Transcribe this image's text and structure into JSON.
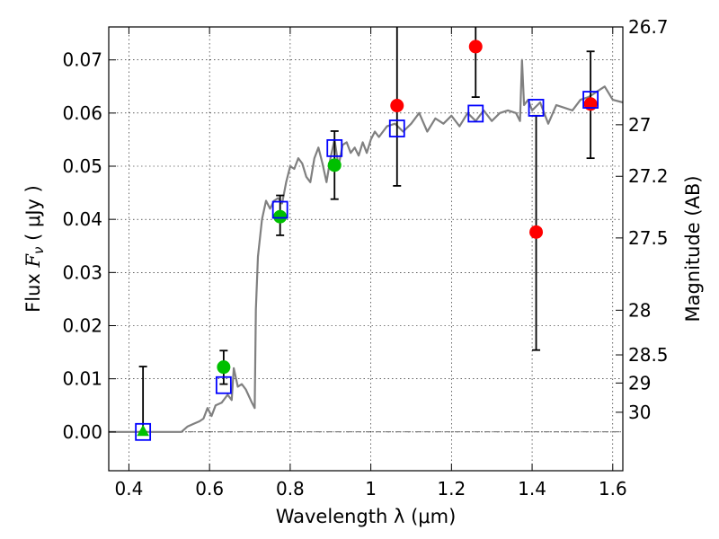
{
  "chart_data": {
    "type": "scatter",
    "xlabel": "Wavelength  λ (μm)",
    "ylabel_prefix": "Flux  ",
    "ylabel_symbol": "F",
    "ylabel_sub": "ν",
    "ylabel_suffix": "  ( μJy )",
    "y2label": "Magnitude (AB)",
    "xlim": [
      0.35,
      1.625
    ],
    "ylim": [
      -0.0073,
      0.0762
    ],
    "xticks": [
      0.4,
      0.6,
      0.8,
      1.0,
      1.2,
      1.4,
      1.6
    ],
    "xtick_labels": [
      "0.4",
      "0.6",
      "0.8",
      "1",
      "1.2",
      "1.4",
      "1.6"
    ],
    "yticks": [
      0.0,
      0.01,
      0.02,
      0.03,
      0.04,
      0.05,
      0.06,
      0.07
    ],
    "ytick_labels": [
      "0.00",
      "0.01",
      "0.02",
      "0.03",
      "0.04",
      "0.05",
      "0.06",
      "0.07"
    ],
    "y2ticks": [
      {
        "label": "26.7",
        "flux": 0.0762
      },
      {
        "label": "27",
        "flux": 0.0578
      },
      {
        "label": "27.2",
        "flux": 0.0481
      },
      {
        "label": "27.5",
        "flux": 0.0365
      },
      {
        "label": "28",
        "flux": 0.0229
      },
      {
        "label": "28.5",
        "flux": 0.0145
      },
      {
        "label": "29",
        "flux": 0.0092
      },
      {
        "label": "30",
        "flux": 0.0037
      }
    ],
    "grid": true,
    "colors": {
      "model": "#808080",
      "green": "#00c000",
      "red": "#ff0000",
      "square": "#0000ff",
      "error": "#000000"
    },
    "model_spectrum": {
      "x": [
        0.35,
        0.53,
        0.545,
        0.56,
        0.575,
        0.585,
        0.595,
        0.605,
        0.615,
        0.63,
        0.645,
        0.655,
        0.66,
        0.67,
        0.68,
        0.69,
        0.705,
        0.712,
        0.715,
        0.72,
        0.73,
        0.74,
        0.75,
        0.76,
        0.77,
        0.78,
        0.79,
        0.8,
        0.81,
        0.82,
        0.83,
        0.84,
        0.85,
        0.86,
        0.87,
        0.88,
        0.89,
        0.9,
        0.91,
        0.92,
        0.93,
        0.94,
        0.95,
        0.96,
        0.97,
        0.98,
        0.99,
        1.0,
        1.01,
        1.02,
        1.04,
        1.06,
        1.08,
        1.1,
        1.12,
        1.14,
        1.16,
        1.18,
        1.2,
        1.22,
        1.24,
        1.26,
        1.28,
        1.3,
        1.32,
        1.34,
        1.36,
        1.37,
        1.375,
        1.38,
        1.39,
        1.4,
        1.42,
        1.44,
        1.46,
        1.48,
        1.5,
        1.52,
        1.54,
        1.56,
        1.58,
        1.6,
        1.625
      ],
      "y": [
        0.0,
        0.0,
        0.001,
        0.0015,
        0.002,
        0.0025,
        0.0045,
        0.003,
        0.005,
        0.0055,
        0.007,
        0.006,
        0.012,
        0.0085,
        0.009,
        0.008,
        0.0055,
        0.0045,
        0.023,
        0.033,
        0.04,
        0.0435,
        0.042,
        0.0435,
        0.044,
        0.043,
        0.047,
        0.05,
        0.0495,
        0.0515,
        0.0505,
        0.048,
        0.047,
        0.0515,
        0.0535,
        0.0505,
        0.047,
        0.0515,
        0.055,
        0.05,
        0.054,
        0.0545,
        0.0525,
        0.0535,
        0.052,
        0.0545,
        0.0525,
        0.055,
        0.0565,
        0.0555,
        0.0575,
        0.058,
        0.0565,
        0.058,
        0.06,
        0.0565,
        0.059,
        0.058,
        0.0595,
        0.0575,
        0.06,
        0.0585,
        0.0605,
        0.0585,
        0.06,
        0.0605,
        0.06,
        0.0585,
        0.07,
        0.0615,
        0.0625,
        0.0605,
        0.062,
        0.058,
        0.0615,
        0.061,
        0.0605,
        0.0625,
        0.063,
        0.064,
        0.065,
        0.0625,
        0.062
      ]
    },
    "error_bars": [
      {
        "x": 0.435,
        "lo": 0.0,
        "hi": 0.0123
      },
      {
        "x": 0.635,
        "lo": 0.009,
        "hi": 0.0153
      },
      {
        "x": 0.775,
        "lo": 0.037,
        "hi": 0.0445
      },
      {
        "x": 0.91,
        "lo": 0.0438,
        "hi": 0.0566
      },
      {
        "x": 1.065,
        "lo": 0.0463,
        "hi": 0.0762
      },
      {
        "x": 1.26,
        "lo": 0.063,
        "hi": 0.0762
      },
      {
        "x": 1.41,
        "lo": 0.0154,
        "hi": 0.0595
      },
      {
        "x": 1.545,
        "lo": 0.0515,
        "hi": 0.0716
      }
    ],
    "green_triangles": [
      {
        "x": 0.435,
        "y": 0.0
      }
    ],
    "green_circles": [
      {
        "x": 0.635,
        "y": 0.0122
      },
      {
        "x": 0.775,
        "y": 0.0405
      },
      {
        "x": 0.91,
        "y": 0.0502
      }
    ],
    "red_circles": [
      {
        "x": 1.065,
        "y": 0.0614
      },
      {
        "x": 1.26,
        "y": 0.0725
      },
      {
        "x": 1.41,
        "y": 0.0376
      },
      {
        "x": 1.545,
        "y": 0.0617
      }
    ],
    "blue_squares": [
      {
        "x": 0.435,
        "y": 0.0
      },
      {
        "x": 0.635,
        "y": 0.0088
      },
      {
        "x": 0.775,
        "y": 0.0418
      },
      {
        "x": 0.91,
        "y": 0.0534
      },
      {
        "x": 1.065,
        "y": 0.0571
      },
      {
        "x": 1.26,
        "y": 0.0599
      },
      {
        "x": 1.41,
        "y": 0.061
      },
      {
        "x": 1.545,
        "y": 0.0625
      }
    ]
  }
}
